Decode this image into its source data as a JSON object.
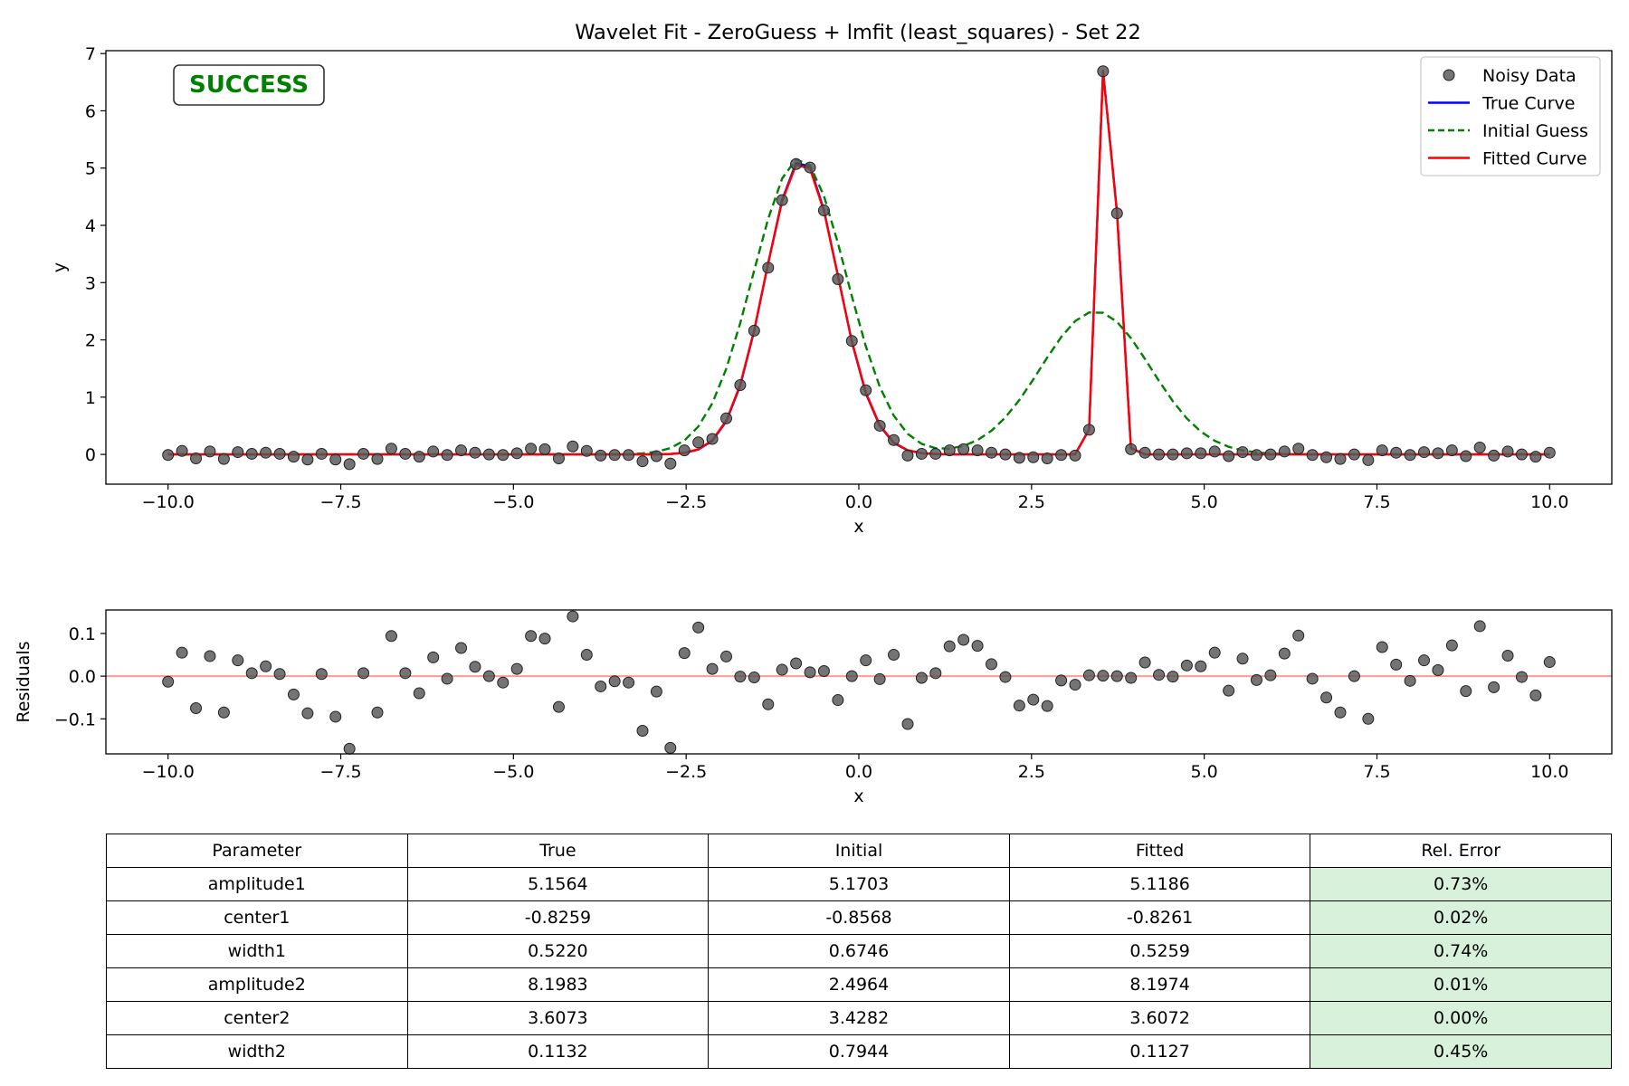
{
  "figure_title": "Wavelet Fit - ZeroGuess + lmfit (least_squares) - Set 22",
  "status_badge": "SUCCESS",
  "colors": {
    "noisy_data": "#555555",
    "true_curve": "#0000ff",
    "initial_guess": "#008000",
    "fitted_curve": "#ff0000",
    "residual_zero_line": "#ff9999",
    "success_text": "#008000",
    "rel_error_cell": "#d7f1da"
  },
  "chart_data": [
    {
      "type": "line",
      "title": "Wavelet Fit - ZeroGuess + lmfit (least_squares) - Set 22",
      "xlabel": "x",
      "ylabel": "y",
      "xlim": [
        -10.9,
        10.9
      ],
      "ylim": [
        -0.52,
        7.05
      ],
      "xticks": [
        -10.0,
        -7.5,
        -5.0,
        -2.5,
        0.0,
        2.5,
        5.0,
        7.5,
        10.0
      ],
      "xtick_labels": [
        "−10.0",
        "−7.5",
        "−5.0",
        "−2.5",
        "0.0",
        "2.5",
        "5.0",
        "7.5",
        "10.0"
      ],
      "yticks": [
        0,
        1,
        2,
        3,
        4,
        5,
        6,
        7
      ],
      "ytick_labels": [
        "0",
        "1",
        "2",
        "3",
        "4",
        "5",
        "6",
        "7"
      ],
      "grid": false,
      "legend_position": "upper right",
      "x_samples": {
        "start": -10.0,
        "end": 10.0,
        "count": 100
      },
      "series": [
        {
          "name": "Noisy Data",
          "style": "markers",
          "y": [
            -0.01,
            0.06,
            -0.07,
            0.05,
            -0.08,
            0.04,
            0.01,
            0.03,
            0.01,
            -0.04,
            -0.09,
            0.01,
            -0.09,
            -0.17,
            0.01,
            -0.08,
            0.1,
            0.01,
            -0.04,
            0.05,
            -0.01,
            0.07,
            0.03,
            0.0,
            -0.01,
            0.02,
            0.1,
            0.09,
            -0.07,
            0.14,
            0.06,
            -0.02,
            -0.01,
            -0.01,
            -0.12,
            -0.03,
            -0.16,
            0.07,
            0.21,
            0.27,
            0.63,
            1.21,
            2.16,
            3.26,
            4.44,
            5.07,
            5.01,
            4.26,
            3.06,
            1.98,
            1.12,
            0.5,
            0.25,
            -0.02,
            0.01,
            0.01,
            0.07,
            0.09,
            0.07,
            0.03,
            0.0,
            -0.06,
            -0.05,
            -0.07,
            -0.01,
            -0.02,
            0.43,
            6.69,
            4.21,
            0.09,
            0.03,
            0.0,
            0.0,
            0.02,
            0.02,
            0.05,
            -0.03,
            0.04,
            -0.01,
            0.0,
            0.05,
            0.1,
            -0.01,
            -0.05,
            -0.08,
            0.0,
            -0.1,
            0.07,
            0.03,
            -0.01,
            0.04,
            0.02,
            0.07,
            -0.03,
            0.12,
            -0.02,
            0.05,
            0.0,
            -0.04,
            0.03
          ]
        },
        {
          "name": "True Curve",
          "style": "solid",
          "function": "gaussian_sum",
          "params": {
            "amplitude1": 5.1564,
            "center1": -0.8259,
            "width1": 0.522,
            "amplitude2": 8.1983,
            "center2": 3.6073,
            "width2": 0.1132
          }
        },
        {
          "name": "Initial Guess",
          "style": "dashed",
          "function": "gaussian_sum",
          "params": {
            "amplitude1": 5.1703,
            "center1": -0.8568,
            "width1": 0.6746,
            "amplitude2": 2.4964,
            "center2": 3.4282,
            "width2": 0.7944
          }
        },
        {
          "name": "Fitted Curve",
          "style": "solid",
          "function": "gaussian_sum",
          "params": {
            "amplitude1": 5.1186,
            "center1": -0.8261,
            "width1": 0.5259,
            "amplitude2": 8.1974,
            "center2": 3.6072,
            "width2": 0.1127
          }
        }
      ]
    },
    {
      "type": "scatter",
      "xlabel": "x",
      "ylabel": "Residuals",
      "xlim": [
        -10.9,
        10.9
      ],
      "ylim": [
        -0.182,
        0.155
      ],
      "xticks": [
        -10.0,
        -7.5,
        -5.0,
        -2.5,
        0.0,
        2.5,
        5.0,
        7.5,
        10.0
      ],
      "xtick_labels": [
        "−10.0",
        "−7.5",
        "−5.0",
        "−2.5",
        "0.0",
        "2.5",
        "5.0",
        "7.5",
        "10.0"
      ],
      "yticks": [
        -0.1,
        0.0,
        0.1
      ],
      "ytick_labels": [
        "−0.1",
        "0.0",
        "0.1"
      ],
      "grid": false,
      "zero_line": 0.0,
      "x_samples": {
        "start": -10.0,
        "end": 10.0,
        "count": 100
      },
      "values": [
        -0.013,
        0.055,
        -0.075,
        0.047,
        -0.085,
        0.037,
        0.007,
        0.023,
        0.005,
        -0.043,
        -0.087,
        0.005,
        -0.095,
        -0.17,
        0.007,
        -0.085,
        0.094,
        0.007,
        -0.04,
        0.044,
        -0.006,
        0.066,
        0.022,
        0.0,
        -0.015,
        0.017,
        0.094,
        0.088,
        -0.072,
        0.14,
        0.05,
        -0.024,
        -0.012,
        -0.015,
        -0.128,
        -0.036,
        -0.168,
        0.054,
        0.114,
        0.017,
        0.046,
        -0.001,
        -0.003,
        -0.066,
        0.015,
        0.03,
        0.009,
        0.012,
        -0.056,
        0.0,
        0.037,
        -0.007,
        0.05,
        -0.112,
        -0.004,
        0.007,
        0.07,
        0.085,
        0.071,
        0.028,
        -0.002,
        -0.069,
        -0.055,
        -0.07,
        -0.01,
        -0.02,
        0.002,
        0.001,
        0.0,
        -0.004,
        0.032,
        0.003,
        -0.001,
        0.025,
        0.023,
        0.055,
        -0.034,
        0.041,
        -0.009,
        0.002,
        0.053,
        0.095,
        -0.006,
        -0.05,
        -0.085,
        0.0,
        -0.1,
        0.068,
        0.027,
        -0.011,
        0.037,
        0.014,
        0.072,
        -0.035,
        0.117,
        -0.026,
        0.048,
        -0.002,
        -0.045,
        0.033
      ]
    },
    {
      "type": "table",
      "columns": [
        "Parameter",
        "True",
        "Initial",
        "Fitted",
        "Rel. Error"
      ],
      "rows": [
        [
          "amplitude1",
          "5.1564",
          "5.1703",
          "5.1186",
          "0.73%"
        ],
        [
          "center1",
          "-0.8259",
          "-0.8568",
          "-0.8261",
          "0.02%"
        ],
        [
          "width1",
          "0.5220",
          "0.6746",
          "0.5259",
          "0.74%"
        ],
        [
          "amplitude2",
          "8.1983",
          "2.4964",
          "8.1974",
          "0.01%"
        ],
        [
          "center2",
          "3.6073",
          "3.4282",
          "3.6072",
          "0.00%"
        ],
        [
          "width2",
          "0.1132",
          "0.7944",
          "0.1127",
          "0.45%"
        ]
      ]
    }
  ]
}
